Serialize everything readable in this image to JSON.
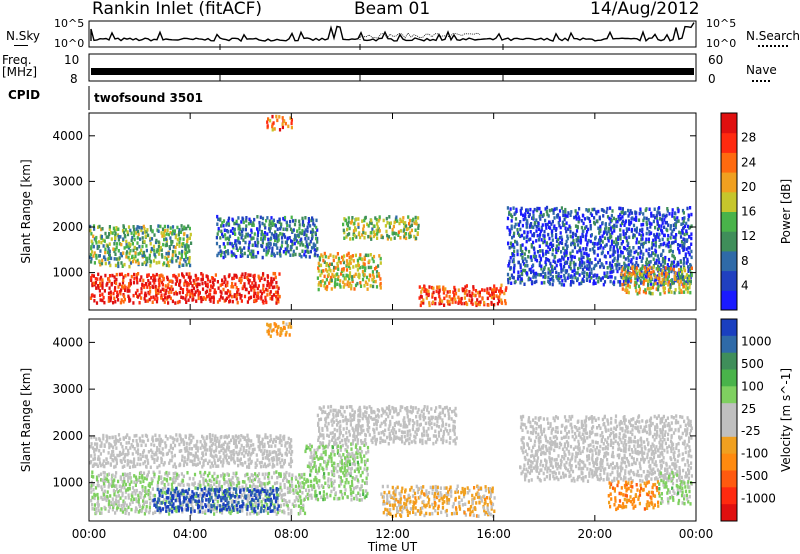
{
  "header": {
    "title": "Rankin Inlet (fitACF)",
    "beam": "Beam 01",
    "date": "14/Aug/2012"
  },
  "strip_panels": {
    "nsky": {
      "label": "N.Sky",
      "ticks": [
        "10^5",
        "10^0"
      ]
    },
    "nsearch": {
      "label": "N.Search",
      "ticks": [
        "10^5",
        "10^0"
      ]
    },
    "freq": {
      "label_top": "Freq.",
      "label_unit": "[MHz]",
      "ticks": [
        "10",
        "8"
      ]
    },
    "nave": {
      "label": "Nave",
      "ticks": [
        "60",
        "0"
      ]
    },
    "cpid": {
      "label": "CPID",
      "value": "twofsound 3501"
    }
  },
  "chart_data": [
    {
      "type": "heatmap",
      "name": "power",
      "ylabel": "Slant Range [km]",
      "yticks": [
        1000,
        2000,
        3000,
        4000
      ],
      "ylim": [
        180,
        4500
      ],
      "xlim": [
        0,
        24
      ],
      "xticks": [
        "00:00",
        "04:00",
        "08:00",
        "12:00",
        "16:00",
        "20:00",
        "00:00"
      ],
      "colorbar": {
        "label": "Power [dB]",
        "ticks": [
          4,
          8,
          12,
          16,
          20,
          24,
          28
        ],
        "colors": [
          "#1a1aff",
          "#2040c0",
          "#2f6aa8",
          "#3f8e5a",
          "#49b34a",
          "#c6c62c",
          "#f0a020",
          "#ff6a10",
          "#ff2a10",
          "#e01010"
        ]
      },
      "regions": [
        {
          "t0": 0.0,
          "t1": 7.5,
          "r0": 300,
          "r1": 950,
          "value": 26
        },
        {
          "t0": 0.0,
          "t1": 4.0,
          "r0": 1100,
          "r1": 2000,
          "value": 14
        },
        {
          "t0": 5.0,
          "t1": 9.0,
          "r0": 1300,
          "r1": 2200,
          "value": 10
        },
        {
          "t0": 9.0,
          "t1": 11.5,
          "r0": 600,
          "r1": 1400,
          "value": 18
        },
        {
          "t0": 10.0,
          "t1": 13.0,
          "r0": 1700,
          "r1": 2200,
          "value": 16
        },
        {
          "t0": 7.0,
          "t1": 8.0,
          "r0": 4100,
          "r1": 4400,
          "value": 22
        },
        {
          "t0": 13.0,
          "t1": 16.5,
          "r0": 250,
          "r1": 700,
          "value": 24
        },
        {
          "t0": 16.5,
          "t1": 23.8,
          "r0": 700,
          "r1": 2400,
          "value": 8
        },
        {
          "t0": 21.0,
          "t1": 23.8,
          "r0": 500,
          "r1": 1100,
          "value": 18
        }
      ]
    },
    {
      "type": "heatmap",
      "name": "velocity",
      "ylabel": "Slant Range [km]",
      "yticks": [
        1000,
        2000,
        3000,
        4000
      ],
      "ylim": [
        180,
        4500
      ],
      "xlim": [
        0,
        24
      ],
      "xticks": [
        "00:00",
        "04:00",
        "08:00",
        "12:00",
        "16:00",
        "20:00",
        "00:00"
      ],
      "xlabel": "Time UT",
      "colorbar": {
        "label": "Velocity [m s^-1]",
        "ticks": [
          1000,
          500,
          100,
          25,
          -25,
          -100,
          -500,
          -1000
        ],
        "colors": [
          "#1a3fc0",
          "#2f6aa8",
          "#3f8e5a",
          "#49b34a",
          "#7fd060",
          "#c0c0c0",
          "#c0c0c0",
          "#f0a020",
          "#ff8a10",
          "#ff5a10",
          "#ff2a10",
          "#e01010"
        ]
      },
      "regions": [
        {
          "t0": 0.0,
          "t1": 8.5,
          "r0": 300,
          "r1": 1200,
          "value": 150
        },
        {
          "t0": 2.5,
          "t1": 7.5,
          "r0": 350,
          "r1": 850,
          "value": 900
        },
        {
          "t0": 0.0,
          "t1": 8.0,
          "r0": 1300,
          "r1": 2000,
          "value": 0
        },
        {
          "t0": 7.0,
          "t1": 8.0,
          "r0": 4100,
          "r1": 4400,
          "value": -300
        },
        {
          "t0": 8.5,
          "t1": 11.0,
          "r0": 600,
          "r1": 1800,
          "value": 200
        },
        {
          "t0": 9.0,
          "t1": 14.5,
          "r0": 1800,
          "r1": 2600,
          "value": 0
        },
        {
          "t0": 11.5,
          "t1": 16.0,
          "r0": 250,
          "r1": 900,
          "value": -200
        },
        {
          "t0": 17.0,
          "t1": 23.8,
          "r0": 1000,
          "r1": 2400,
          "value": 0
        },
        {
          "t0": 20.5,
          "t1": 22.5,
          "r0": 400,
          "r1": 1000,
          "value": -400
        },
        {
          "t0": 22.5,
          "t1": 23.8,
          "r0": 500,
          "r1": 1200,
          "value": 200
        }
      ]
    }
  ]
}
